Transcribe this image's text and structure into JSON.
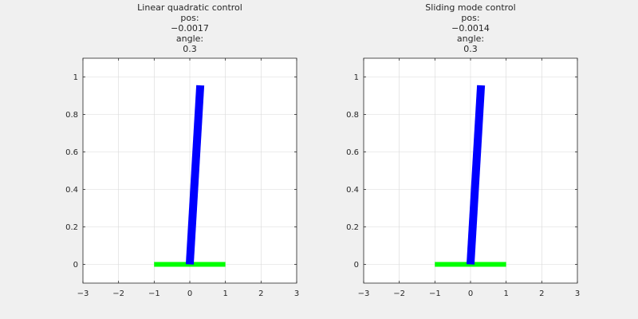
{
  "window": {
    "background": "#f0f0f0"
  },
  "chart_data": [
    {
      "type": "line",
      "title_lines": [
        "Linear quadratic control",
        "pos:",
        "−0.0017",
        "angle:",
        "0.3"
      ],
      "xlim": [
        -3,
        3
      ],
      "ylim": [
        -0.1,
        1.1
      ],
      "xticks": [
        -3,
        -2,
        -1,
        0,
        1,
        2,
        3
      ],
      "xtick_labels": [
        "−3",
        "−2",
        "−1",
        "0",
        "1",
        "2",
        "3"
      ],
      "yticks": [
        0,
        0.2,
        0.4,
        0.6,
        0.8,
        1
      ],
      "ytick_labels": [
        "0",
        "0.2",
        "0.4",
        "0.6",
        "0.8",
        "1"
      ],
      "grid": true,
      "series": [
        {
          "role": "cart",
          "x": [
            -1.0017,
            0.9983
          ],
          "y": [
            0,
            0
          ],
          "color": "#00ff00"
        },
        {
          "role": "pole",
          "x": [
            -0.0017,
            0.2938
          ],
          "y": [
            0,
            0.9553
          ],
          "color": "#0000ff"
        }
      ]
    },
    {
      "type": "line",
      "title_lines": [
        "Sliding mode control",
        "pos:",
        "−0.0014",
        "angle:",
        "0.3"
      ],
      "xlim": [
        -3,
        3
      ],
      "ylim": [
        -0.1,
        1.1
      ],
      "xticks": [
        -3,
        -2,
        -1,
        0,
        1,
        2,
        3
      ],
      "xtick_labels": [
        "−3",
        "−2",
        "−1",
        "0",
        "1",
        "2",
        "3"
      ],
      "yticks": [
        0,
        0.2,
        0.4,
        0.6,
        0.8,
        1
      ],
      "ytick_labels": [
        "0",
        "0.2",
        "0.4",
        "0.6",
        "0.8",
        "1"
      ],
      "grid": true,
      "series": [
        {
          "role": "cart",
          "x": [
            -1.0014,
            0.9986
          ],
          "y": [
            0,
            0
          ],
          "color": "#00ff00"
        },
        {
          "role": "pole",
          "x": [
            -0.0014,
            0.2941
          ],
          "y": [
            0,
            0.9553
          ],
          "color": "#0000ff"
        }
      ]
    }
  ]
}
